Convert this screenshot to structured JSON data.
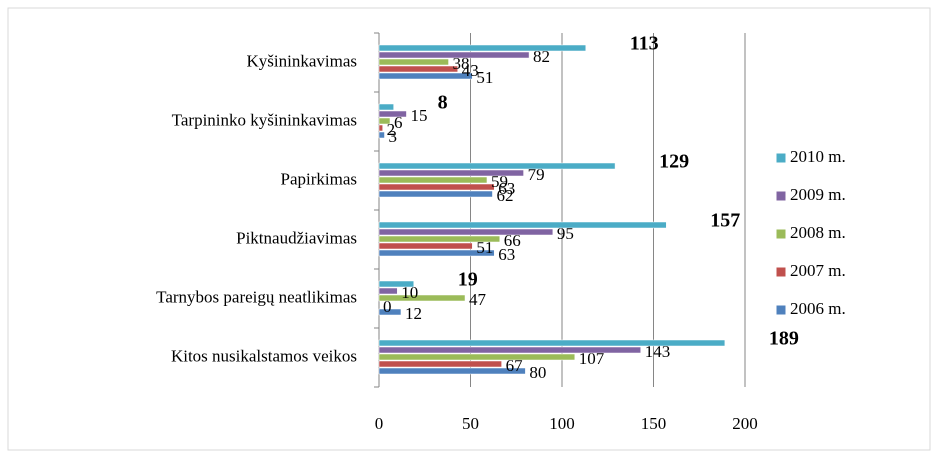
{
  "chart_data": {
    "type": "hbar",
    "categories": [
      "Kyšininkavimas",
      "Tarpininko kyšininkavimas",
      "Papirkimas",
      "Piktnaudžiavimas",
      "Tarnybos pareigų neatlikimas",
      "Kitos nusikalstamos veikos"
    ],
    "series": [
      {
        "name": "2006 m.",
        "color": "#4f81bd",
        "values": [
          51,
          3,
          62,
          63,
          12,
          80
        ]
      },
      {
        "name": "2007 m.",
        "color": "#c0504d",
        "values": [
          43,
          2,
          63,
          51,
          0,
          67
        ]
      },
      {
        "name": "2008 m.",
        "color": "#9bbb59",
        "values": [
          38,
          6,
          59,
          66,
          47,
          107
        ]
      },
      {
        "name": "2009 m.",
        "color": "#8064a2",
        "values": [
          82,
          15,
          79,
          95,
          10,
          143
        ]
      },
      {
        "name": "2010 m.",
        "color": "#4bacc6",
        "values": [
          113,
          8,
          129,
          157,
          19,
          189
        ]
      }
    ],
    "xlim": [
      0,
      200
    ],
    "xticks": [
      0,
      50,
      100,
      150,
      200
    ],
    "grid": true,
    "legend": "right"
  }
}
